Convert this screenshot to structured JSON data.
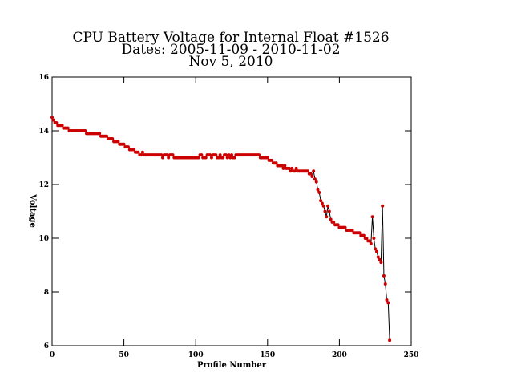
{
  "chart_data": {
    "type": "line",
    "title": [
      "CPU Battery Voltage for Internal Float #1526",
      "Dates:  2005-11-09 -  2010-11-02",
      "Nov  5, 2010"
    ],
    "xlabel": "Profile Number",
    "ylabel": "Voltage",
    "xlim": [
      0,
      250
    ],
    "ylim": [
      6,
      16
    ],
    "xticks": [
      0,
      50,
      100,
      150,
      200,
      250
    ],
    "yticks": [
      6,
      8,
      10,
      12,
      14,
      16
    ],
    "x": [
      0,
      1,
      2,
      3,
      4,
      5,
      6,
      7,
      8,
      9,
      10,
      11,
      12,
      13,
      14,
      15,
      16,
      17,
      18,
      19,
      20,
      21,
      22,
      23,
      24,
      25,
      26,
      27,
      28,
      29,
      30,
      31,
      32,
      33,
      34,
      35,
      36,
      37,
      38,
      39,
      40,
      41,
      42,
      43,
      44,
      45,
      46,
      47,
      48,
      49,
      50,
      51,
      52,
      53,
      54,
      55,
      56,
      57,
      58,
      59,
      60,
      61,
      62,
      63,
      64,
      65,
      66,
      67,
      68,
      69,
      70,
      71,
      72,
      73,
      74,
      75,
      76,
      77,
      78,
      79,
      80,
      81,
      82,
      83,
      84,
      85,
      86,
      87,
      88,
      89,
      90,
      91,
      92,
      93,
      94,
      95,
      96,
      97,
      98,
      99,
      100,
      101,
      102,
      103,
      104,
      105,
      106,
      107,
      108,
      109,
      110,
      111,
      112,
      113,
      114,
      115,
      116,
      117,
      118,
      119,
      120,
      121,
      122,
      123,
      124,
      125,
      126,
      127,
      128,
      129,
      130,
      131,
      132,
      133,
      134,
      135,
      136,
      137,
      138,
      139,
      140,
      141,
      142,
      143,
      144,
      145,
      146,
      147,
      148,
      149,
      150,
      151,
      152,
      153,
      154,
      155,
      156,
      157,
      158,
      159,
      160,
      161,
      162,
      163,
      164,
      165,
      166,
      167,
      168,
      169,
      170,
      171,
      172,
      173,
      174,
      175,
      176,
      177,
      178,
      179,
      180,
      181,
      182,
      183,
      184,
      185,
      186,
      187,
      188,
      189,
      190,
      191,
      192,
      193,
      194,
      195,
      196,
      197,
      198,
      199,
      200,
      201,
      202,
      203,
      204,
      205,
      206,
      207,
      208,
      209,
      210,
      211,
      212,
      213,
      214,
      215,
      216,
      217,
      218,
      219,
      220,
      221,
      222,
      223,
      224,
      225,
      226,
      227,
      228,
      229,
      230,
      231,
      232,
      233,
      234,
      235
    ],
    "series": [
      {
        "name": "Voltage",
        "color": "#cc0000",
        "line_color": "#000000",
        "values": [
          14.5,
          14.4,
          14.3,
          14.3,
          14.2,
          14.2,
          14.2,
          14.2,
          14.1,
          14.1,
          14.1,
          14.1,
          14.0,
          14.0,
          14.0,
          14.0,
          14.0,
          14.0,
          14.0,
          14.0,
          14.0,
          14.0,
          14.0,
          14.0,
          13.9,
          13.9,
          13.9,
          13.9,
          13.9,
          13.9,
          13.9,
          13.9,
          13.9,
          13.9,
          13.8,
          13.8,
          13.8,
          13.8,
          13.8,
          13.7,
          13.7,
          13.7,
          13.7,
          13.6,
          13.6,
          13.6,
          13.6,
          13.5,
          13.5,
          13.5,
          13.5,
          13.4,
          13.4,
          13.4,
          13.3,
          13.3,
          13.3,
          13.3,
          13.2,
          13.2,
          13.2,
          13.1,
          13.1,
          13.2,
          13.1,
          13.1,
          13.1,
          13.1,
          13.1,
          13.1,
          13.1,
          13.1,
          13.1,
          13.1,
          13.1,
          13.1,
          13.1,
          13.0,
          13.1,
          13.1,
          13.1,
          13.0,
          13.1,
          13.1,
          13.1,
          13.0,
          13.0,
          13.0,
          13.0,
          13.0,
          13.0,
          13.0,
          13.0,
          13.0,
          13.0,
          13.0,
          13.0,
          13.0,
          13.0,
          13.0,
          13.0,
          13.0,
          13.0,
          13.1,
          13.1,
          13.0,
          13.0,
          13.0,
          13.1,
          13.1,
          13.1,
          13.0,
          13.1,
          13.1,
          13.1,
          13.0,
          13.0,
          13.1,
          13.0,
          13.0,
          13.1,
          13.1,
          13.0,
          13.1,
          13.0,
          13.1,
          13.0,
          13.0,
          13.1,
          13.1,
          13.1,
          13.1,
          13.1,
          13.1,
          13.1,
          13.1,
          13.1,
          13.1,
          13.1,
          13.1,
          13.1,
          13.1,
          13.1,
          13.1,
          13.1,
          13.0,
          13.0,
          13.0,
          13.0,
          13.0,
          13.0,
          12.9,
          12.9,
          12.9,
          12.8,
          12.8,
          12.8,
          12.7,
          12.7,
          12.7,
          12.7,
          12.6,
          12.7,
          12.6,
          12.6,
          12.6,
          12.5,
          12.6,
          12.5,
          12.5,
          12.6,
          12.5,
          12.5,
          12.5,
          12.5,
          12.5,
          12.5,
          12.5,
          12.5,
          12.4,
          12.4,
          12.3,
          12.5,
          12.2,
          12.1,
          11.8,
          11.7,
          11.4,
          11.3,
          11.2,
          11.0,
          10.8,
          11.2,
          11.0,
          10.7,
          10.6,
          10.6,
          10.5,
          10.5,
          10.5,
          10.4,
          10.4,
          10.4,
          10.4,
          10.4,
          10.3,
          10.3,
          10.3,
          10.3,
          10.3,
          10.2,
          10.2,
          10.2,
          10.2,
          10.2,
          10.1,
          10.1,
          10.1,
          10.0,
          10.0,
          9.9,
          9.9,
          9.8,
          10.8,
          10.0,
          9.6,
          9.5,
          9.3,
          9.2,
          9.1,
          11.2,
          8.6,
          8.3,
          7.7,
          7.6,
          6.2
        ]
      }
    ]
  }
}
